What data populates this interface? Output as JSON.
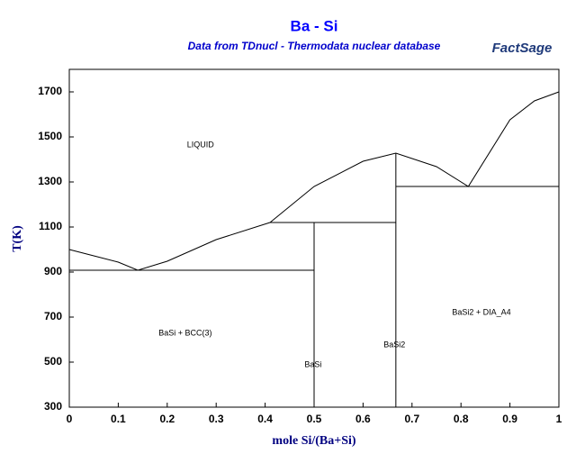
{
  "chart_data": {
    "type": "line",
    "title": "Ba - Si",
    "subtitle": "Data from TDnucl - Thermodata nuclear database",
    "logo": "FactSage",
    "x_label": "mole Si/(Ba+Si)",
    "y_label": "T(K)",
    "xlim": [
      0,
      1
    ],
    "ylim": [
      300,
      1800
    ],
    "xticks": [
      0,
      0.1,
      0.2,
      0.3,
      0.4,
      0.5,
      0.6,
      0.7,
      0.8,
      0.9,
      1
    ],
    "yticks": [
      300,
      500,
      700,
      900,
      1100,
      1300,
      1500,
      1700
    ],
    "color": "#000000",
    "series": [
      {
        "x": [
          0,
          0.05,
          0.1,
          0.14,
          0.2,
          0.3,
          0.41
        ],
        "values": [
          1000,
          972,
          944,
          908,
          948,
          1044,
          1120
        ]
      },
      {
        "x": [
          0.41,
          0.5,
          0.6,
          0.667,
          0.75,
          0.815,
          0.9,
          0.95,
          1
        ],
        "values": [
          1120,
          1280,
          1392,
          1428,
          1368,
          1280,
          1576,
          1660,
          1700
        ]
      },
      {
        "x": [
          0,
          0.5
        ],
        "values": [
          908,
          908
        ]
      },
      {
        "x": [
          0.41,
          0.667
        ],
        "values": [
          1120,
          1120
        ]
      },
      {
        "x": [
          0.667,
          1
        ],
        "values": [
          1280,
          1280
        ]
      },
      {
        "x": [
          0.5,
          0.5
        ],
        "values": [
          300,
          1120
        ]
      },
      {
        "x": [
          0.667,
          0.667
        ],
        "values": [
          300,
          1428
        ]
      }
    ],
    "annotations": [
      {
        "text": "LIQUID",
        "x": 0.268,
        "y": 1464
      },
      {
        "text": "BaSi + BCC(3)",
        "x": 0.237,
        "y": 628
      },
      {
        "text": "BaSi",
        "x": 0.498,
        "y": 488
      },
      {
        "text": "BaSi2",
        "x": 0.664,
        "y": 576
      },
      {
        "text": "BaSi2 + DIA_A4",
        "x": 0.842,
        "y": 720
      }
    ]
  }
}
